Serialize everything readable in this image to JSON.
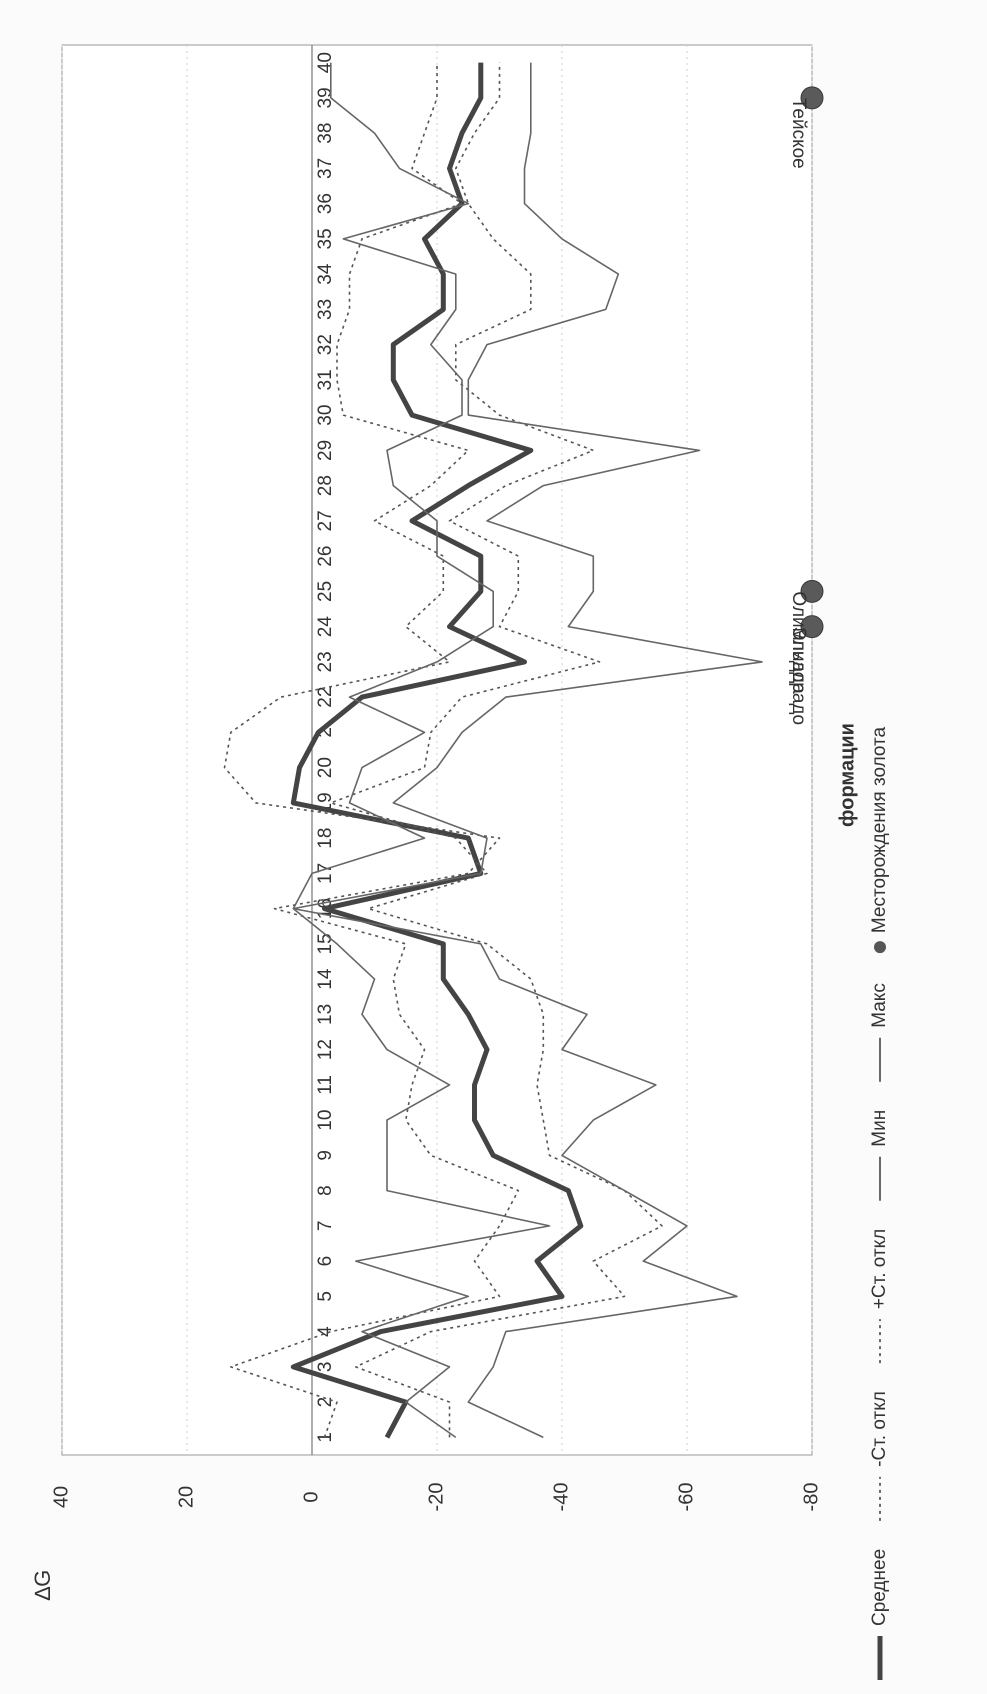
{
  "chart_data": {
    "type": "line",
    "ylabel": "∆G",
    "xlabel": "формации",
    "ylim": [
      -80,
      40
    ],
    "yticks": [
      40,
      20,
      0,
      -20,
      -40,
      -60,
      -80
    ],
    "categories": [
      "1",
      "2",
      "3",
      "4",
      "5",
      "6",
      "7",
      "8",
      "9",
      "10",
      "11",
      "12",
      "13",
      "14",
      "15",
      "16",
      "17",
      "18",
      "19",
      "20",
      "2",
      "22",
      "23",
      "24",
      "25",
      "26",
      "27",
      "28",
      "29",
      "30",
      "31",
      "32",
      "33",
      "34",
      "35",
      "36",
      "37",
      "38",
      "39",
      "40"
    ],
    "grid": true,
    "legend_position": "bottom",
    "series": [
      {
        "name": "Среднее",
        "style": "thick-solid",
        "color": "#444444",
        "values": [
          -12,
          -15,
          3,
          -11,
          -40,
          -36,
          -43,
          -41,
          -29,
          -26,
          -26,
          -28,
          -25,
          -21,
          -21,
          -2,
          -27,
          -25,
          3,
          2,
          -1,
          -8,
          -34,
          -22,
          -27,
          -27,
          -16,
          -25,
          -35,
          -16,
          -13,
          -13,
          -21,
          -21,
          -18,
          -24,
          -22,
          -24,
          -27,
          -27
        ]
      },
      {
        "name": "-Ст. откл",
        "style": "dotted",
        "color": "#555555",
        "values": [
          -22,
          -22,
          -7,
          -19,
          -50,
          -45,
          -56,
          -50,
          -38,
          -37,
          -36,
          -37,
          -37,
          -35,
          -28,
          -9,
          -28,
          -23,
          -3,
          -18,
          -19,
          -24,
          -46,
          -30,
          -33,
          -33,
          -22,
          -31,
          -45,
          -30,
          -23,
          -23,
          -35,
          -35,
          -29,
          -25,
          -23,
          -26,
          -30,
          -30
        ]
      },
      {
        "name": "+Ст. откл",
        "style": "dotted",
        "color": "#555555",
        "values": [
          -2,
          -4,
          13,
          -3,
          -30,
          -26,
          -30,
          -33,
          -19,
          -15,
          -16,
          -18,
          -14,
          -13,
          -15,
          6,
          -25,
          -30,
          9,
          14,
          13,
          5,
          -22,
          -15,
          -21,
          -21,
          -10,
          -19,
          -25,
          -5,
          -4,
          -4,
          -6,
          -6,
          -8,
          -24,
          -16,
          -18,
          -20,
          -20
        ]
      },
      {
        "name": "Мин",
        "style": "thin-solid",
        "color": "#666666",
        "values": [
          -37,
          -25,
          -29,
          -31,
          -68,
          -53,
          -60,
          -50,
          -40,
          -45,
          -55,
          -40,
          -44,
          -30,
          -27,
          3,
          -27,
          -28,
          -13,
          -20,
          -24,
          -31,
          -72,
          -41,
          -45,
          -45,
          -28,
          -37,
          -62,
          -25,
          -25,
          -28,
          -47,
          -49,
          -40,
          -34,
          -34,
          -35,
          -35,
          -35
        ]
      },
      {
        "name": "Макс",
        "style": "thin-solid",
        "color": "#666666",
        "values": [
          -23,
          -15,
          -22,
          -8,
          -25,
          -7,
          -38,
          -12,
          -12,
          -12,
          -22,
          -12,
          -8,
          -10,
          -4,
          3,
          0,
          -18,
          -6,
          -8,
          -18,
          -6,
          -20,
          -29,
          -29,
          -20,
          -20,
          -13,
          -12,
          -24,
          -24,
          -19,
          -23,
          -23,
          -5,
          -25,
          -14,
          -10,
          -3,
          -3
        ]
      }
    ],
    "annotations": [
      {
        "label": "Эльдорадо",
        "category": "24"
      },
      {
        "label": "Олимпиада",
        "category": "25"
      },
      {
        "label": "Тейское",
        "category": "39"
      }
    ],
    "legend": [
      {
        "label": "Среднее",
        "style": "thick-solid"
      },
      {
        "label": "-Ст. откл",
        "style": "dotted"
      },
      {
        "label": "+Ст. откл",
        "style": "dotted"
      },
      {
        "label": "Мин",
        "style": "thin-solid"
      },
      {
        "label": "Макс",
        "style": "thin-solid"
      },
      {
        "label": "Месторождения золота",
        "style": "dot"
      }
    ]
  }
}
